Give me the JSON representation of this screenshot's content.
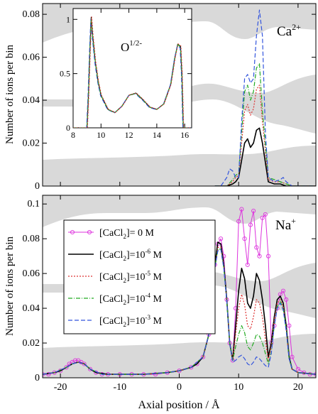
{
  "chart_data": [
    {
      "type": "line",
      "panel": "top",
      "label": "Ca",
      "label_sup": "2+",
      "ylabel": "Number of ions per bin",
      "xlim": [
        -23,
        23
      ],
      "ylim": [
        0,
        0.085
      ],
      "yticks": [
        "0",
        "0.02",
        "0.04",
        "0.06",
        "0.08"
      ],
      "series": [
        {
          "name": "[CaCl2]=10^-6 M",
          "color": "#000000",
          "dash": "",
          "width": 1.6,
          "x": [
            6,
            8,
            9,
            9.5,
            10,
            10.5,
            11,
            11.5,
            12,
            12.5,
            13,
            13.5,
            14,
            15,
            16,
            17,
            18,
            19,
            23
          ],
          "y": [
            0,
            0,
            0.001,
            0.002,
            0.004,
            0.012,
            0.02,
            0.022,
            0.018,
            0.02,
            0.026,
            0.027,
            0.02,
            0.002,
            0.001,
            0.001,
            0,
            0,
            0
          ]
        },
        {
          "name": "[CaCl2]=10^-5 M",
          "color": "#dd3333",
          "dash": "2,2",
          "width": 1.2,
          "x": [
            6,
            8,
            9,
            9.5,
            10,
            10.5,
            11,
            11.5,
            12,
            12.5,
            13,
            13.5,
            14,
            15,
            16,
            17,
            18,
            19,
            23
          ],
          "y": [
            0,
            0,
            0.002,
            0.004,
            0.005,
            0.02,
            0.035,
            0.038,
            0.033,
            0.036,
            0.045,
            0.047,
            0.03,
            0.003,
            0.002,
            0.002,
            0.001,
            0,
            0
          ]
        },
        {
          "name": "[CaCl2]=10^-4 M",
          "color": "#22aa22",
          "dash": "6,2,1,2",
          "width": 1.2,
          "x": [
            6,
            8,
            9,
            9.5,
            10,
            10.5,
            11,
            11.5,
            12,
            12.5,
            13,
            13.5,
            14,
            15,
            16,
            17,
            18,
            19,
            23
          ],
          "y": [
            0,
            0,
            0.003,
            0.005,
            0.006,
            0.025,
            0.044,
            0.047,
            0.04,
            0.044,
            0.055,
            0.057,
            0.035,
            0.004,
            0.003,
            0.002,
            0.001,
            0,
            0
          ]
        },
        {
          "name": "[CaCl2]=10^-3 M",
          "color": "#3355dd",
          "dash": "6,3",
          "width": 1.2,
          "x": [
            6,
            7,
            8,
            8.5,
            9,
            9.5,
            10,
            10.5,
            11,
            11.5,
            12,
            12.5,
            13,
            13.5,
            14,
            14.5,
            15,
            16,
            17,
            17.5,
            18,
            19,
            23
          ],
          "y": [
            0,
            0,
            0.004,
            0.008,
            0.007,
            0.004,
            0.004,
            0.03,
            0.05,
            0.052,
            0.048,
            0.05,
            0.07,
            0.082,
            0.07,
            0.025,
            0.004,
            0.002,
            0.003,
            0.004,
            0.002,
            0,
            0
          ]
        }
      ]
    },
    {
      "type": "line",
      "panel": "inset",
      "label": "O",
      "label_sup": "1/2-",
      "xlim": [
        8,
        16.5
      ],
      "ylim": [
        0,
        1.1
      ],
      "xticks": [
        "8",
        "10",
        "12",
        "14",
        "16"
      ],
      "yticks": [
        "0",
        "0.5",
        "1"
      ],
      "series": [
        {
          "name": "O",
          "color": "#000000",
          "x": [
            8,
            9,
            9.1,
            9.2,
            9.3,
            9.4,
            9.6,
            9.8,
            10,
            10.5,
            11,
            11.5,
            12,
            12.5,
            13,
            13.5,
            14,
            14.5,
            15,
            15.3,
            15.5,
            15.7,
            15.8,
            15.9,
            16.5
          ],
          "y": [
            0,
            0,
            0.3,
            0.7,
            1.02,
            0.85,
            0.6,
            0.42,
            0.3,
            0.17,
            0.14,
            0.2,
            0.3,
            0.32,
            0.26,
            0.19,
            0.17,
            0.22,
            0.4,
            0.65,
            0.77,
            0.75,
            0.5,
            0,
            0
          ]
        }
      ]
    },
    {
      "type": "line",
      "panel": "bottom",
      "label": "Na",
      "label_sup": "+",
      "ylabel": "Number of ions per bin",
      "xlabel": "Axial position / Å",
      "xlim": [
        -23,
        23
      ],
      "ylim": [
        0,
        0.105
      ],
      "xticks": [
        "-20",
        "-10",
        "0",
        "10",
        "20"
      ],
      "yticks": [
        "0",
        "0.02",
        "0.04",
        "0.06",
        "0.08",
        "0.1"
      ],
      "series": [
        {
          "name": "[CaCl2]= 0 M",
          "color": "#dd33dd",
          "marker": "circle",
          "width": 1.0,
          "x": [
            -23,
            -22,
            -21,
            -20,
            -19,
            -18.5,
            -18,
            -17.5,
            -17,
            -16.5,
            -16,
            -15,
            -14,
            -13,
            -12,
            -10,
            -8,
            -6,
            -4,
            -2,
            0,
            2,
            3,
            4,
            5,
            5.5,
            6,
            6.5,
            7,
            7.5,
            8,
            8.5,
            9,
            9.5,
            10,
            10.5,
            11,
            11.5,
            12,
            12.5,
            13,
            13.5,
            14,
            14.5,
            15,
            15.5,
            16,
            16.5,
            17,
            17.5,
            18,
            18.5,
            19,
            20,
            21,
            22,
            23
          ],
          "y": [
            0.002,
            0.002,
            0.003,
            0.004,
            0.006,
            0.008,
            0.009,
            0.01,
            0.01,
            0.009,
            0.008,
            0.005,
            0.003,
            0.002,
            0.002,
            0.002,
            0.002,
            0.002,
            0.002,
            0.003,
            0.004,
            0.006,
            0.008,
            0.012,
            0.025,
            0.045,
            0.065,
            0.077,
            0.08,
            0.07,
            0.045,
            0.02,
            0.01,
            0.04,
            0.09,
            0.097,
            0.08,
            0.065,
            0.088,
            0.096,
            0.075,
            0.07,
            0.092,
            0.094,
            0.07,
            0.02,
            0.03,
            0.04,
            0.048,
            0.05,
            0.045,
            0.03,
            0.012,
            0.005,
            0.003,
            0.002,
            0.002
          ]
        },
        {
          "name": "[CaCl2]=10^-6 M",
          "color": "#000000",
          "width": 1.6,
          "x": [
            -23,
            -21,
            -20,
            -19,
            -18,
            -17,
            -16,
            -15,
            -14,
            -12,
            -10,
            -6,
            -2,
            0,
            2,
            3,
            4,
            5,
            5.5,
            6,
            6.5,
            7,
            7.5,
            8,
            8.5,
            9,
            9.5,
            10,
            10.5,
            11,
            11.5,
            12,
            12.5,
            13,
            13.5,
            14,
            14.5,
            15,
            15.5,
            16,
            16.5,
            17,
            17.5,
            18,
            18.5,
            19,
            20,
            23
          ],
          "y": [
            0.002,
            0.003,
            0.004,
            0.006,
            0.008,
            0.009,
            0.008,
            0.005,
            0.003,
            0.002,
            0.002,
            0.002,
            0.003,
            0.004,
            0.006,
            0.008,
            0.012,
            0.025,
            0.045,
            0.065,
            0.078,
            0.077,
            0.065,
            0.045,
            0.02,
            0.01,
            0.03,
            0.05,
            0.063,
            0.057,
            0.043,
            0.04,
            0.047,
            0.06,
            0.056,
            0.045,
            0.03,
            0.012,
            0.02,
            0.035,
            0.045,
            0.047,
            0.043,
            0.03,
            0.012,
            0.005,
            0.003,
            0.002
          ]
        },
        {
          "name": "[CaCl2]=10^-5 M",
          "color": "#dd3333",
          "dash": "2,2",
          "width": 1.2,
          "x": [
            -23,
            -21,
            -19,
            -18,
            -17,
            -16,
            -15,
            -13,
            -10,
            -6,
            -2,
            0,
            2,
            4,
            5,
            5.5,
            6,
            6.5,
            7,
            7.5,
            8,
            8.5,
            9,
            9.5,
            10,
            10.5,
            11,
            11.5,
            12,
            12.5,
            13,
            13.5,
            14,
            14.5,
            15,
            15.5,
            16,
            16.5,
            17,
            17.5,
            18,
            18.5,
            19,
            20,
            23
          ],
          "y": [
            0.002,
            0.003,
            0.006,
            0.008,
            0.009,
            0.008,
            0.005,
            0.002,
            0.002,
            0.002,
            0.003,
            0.004,
            0.006,
            0.012,
            0.025,
            0.045,
            0.063,
            0.075,
            0.075,
            0.064,
            0.044,
            0.02,
            0.01,
            0.025,
            0.04,
            0.048,
            0.042,
            0.03,
            0.028,
            0.035,
            0.045,
            0.043,
            0.035,
            0.022,
            0.01,
            0.018,
            0.033,
            0.043,
            0.045,
            0.041,
            0.028,
            0.011,
            0.005,
            0.003,
            0.002
          ]
        },
        {
          "name": "[CaCl2]=10^-4 M",
          "color": "#22aa22",
          "dash": "6,2,1,2",
          "width": 1.2,
          "x": [
            -23,
            -21,
            -19,
            -18,
            -17,
            -16,
            -15,
            -13,
            -10,
            -6,
            -2,
            0,
            2,
            4,
            5,
            5.5,
            6,
            6.5,
            7,
            7.5,
            8,
            8.5,
            9,
            9.5,
            10,
            10.5,
            11,
            11.5,
            12,
            12.5,
            13,
            13.5,
            14,
            14.5,
            15,
            15.5,
            16,
            16.5,
            17,
            17.5,
            18,
            18.5,
            19,
            20,
            23
          ],
          "y": [
            0.002,
            0.003,
            0.006,
            0.008,
            0.009,
            0.008,
            0.005,
            0.002,
            0.002,
            0.002,
            0.003,
            0.004,
            0.006,
            0.012,
            0.025,
            0.045,
            0.063,
            0.074,
            0.074,
            0.063,
            0.044,
            0.02,
            0.01,
            0.018,
            0.025,
            0.03,
            0.026,
            0.018,
            0.016,
            0.02,
            0.025,
            0.024,
            0.02,
            0.014,
            0.008,
            0.015,
            0.03,
            0.041,
            0.044,
            0.04,
            0.028,
            0.011,
            0.005,
            0.003,
            0.002
          ]
        },
        {
          "name": "[CaCl2]=10^-3 M",
          "color": "#3355dd",
          "dash": "6,3",
          "width": 1.2,
          "x": [
            -23,
            -21,
            -19,
            -18,
            -17,
            -16,
            -15,
            -13,
            -10,
            -6,
            -2,
            0,
            2,
            4,
            5,
            5.5,
            6,
            6.5,
            7,
            7.5,
            8,
            8.5,
            9,
            9.5,
            10,
            10.5,
            11,
            11.5,
            12,
            12.5,
            13,
            13.5,
            14,
            14.5,
            15,
            15.5,
            16,
            16.5,
            17,
            17.5,
            18,
            18.5,
            19,
            20,
            23
          ],
          "y": [
            0.002,
            0.003,
            0.006,
            0.008,
            0.009,
            0.008,
            0.005,
            0.002,
            0.002,
            0.002,
            0.003,
            0.004,
            0.006,
            0.012,
            0.025,
            0.045,
            0.063,
            0.073,
            0.074,
            0.063,
            0.044,
            0.02,
            0.009,
            0.01,
            0.012,
            0.013,
            0.011,
            0.008,
            0.007,
            0.009,
            0.012,
            0.011,
            0.009,
            0.007,
            0.006,
            0.014,
            0.03,
            0.04,
            0.043,
            0.039,
            0.027,
            0.011,
            0.005,
            0.003,
            0.002
          ]
        }
      ],
      "legend": {
        "placement": "top-left",
        "entries": [
          {
            "pre": "[CaCl",
            "sub": "2",
            "post": "]= 0 M",
            "sup": ""
          },
          {
            "pre": "[CaCl",
            "sub": "2",
            "post": "]=10",
            "sup": "-6",
            "unit": " M"
          },
          {
            "pre": "[CaCl",
            "sub": "2",
            "post": "]=10",
            "sup": "-5",
            "unit": " M"
          },
          {
            "pre": "[CaCl",
            "sub": "2",
            "post": "]=10",
            "sup": "-4",
            "unit": " M"
          },
          {
            "pre": "[CaCl",
            "sub": "2",
            "post": "]=10",
            "sup": "-3",
            "unit": " M"
          }
        ]
      }
    }
  ]
}
